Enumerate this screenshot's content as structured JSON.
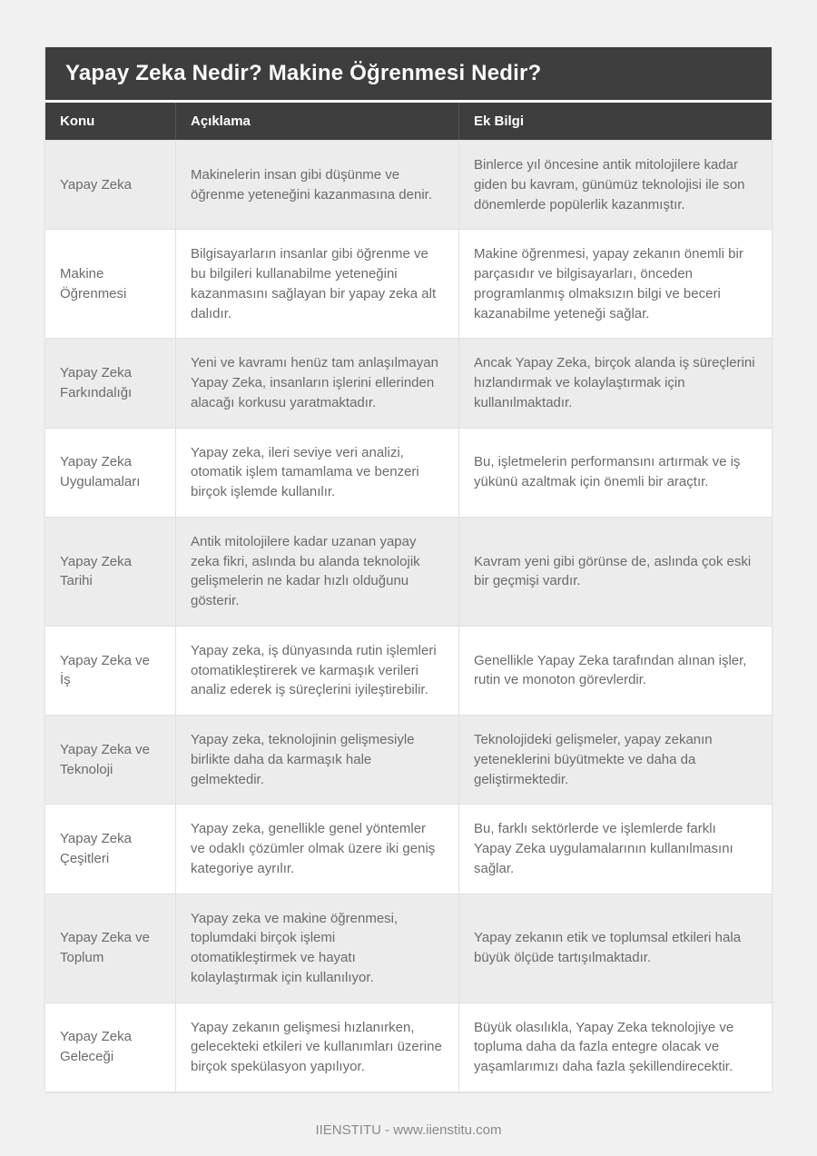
{
  "title": "Yapay Zeka Nedir? Makine Öğrenmesi Nedir?",
  "table": {
    "headers": {
      "konu": "Konu",
      "aciklama": "Açıklama",
      "ek_bilgi": "Ek Bilgi"
    },
    "rows": [
      {
        "konu": "Yapay Zeka",
        "aciklama": "Makinelerin insan gibi düşünme ve öğrenme yeteneğini kazanmasına denir.",
        "ek_bilgi": "Binlerce yıl öncesine antik mitolojilere kadar giden bu kavram, günümüz teknolojisi ile son dönemlerde popülerlik kazanmıştır."
      },
      {
        "konu": "Makine Öğrenmesi",
        "aciklama": "Bilgisayarların insanlar gibi öğrenme ve bu bilgileri kullanabilme yeteneğini kazanmasını sağlayan bir yapay zeka alt dalıdır.",
        "ek_bilgi": "Makine öğrenmesi, yapay zekanın önemli bir parçasıdır ve bilgisayarları, önceden programlanmış olmaksızın bilgi ve beceri kazanabilme yeteneği sağlar."
      },
      {
        "konu": "Yapay Zeka Farkındalığı",
        "aciklama": "Yeni ve kavramı henüz tam anlaşılmayan Yapay Zeka, insanların işlerini ellerinden alacağı korkusu yaratmaktadır.",
        "ek_bilgi": "Ancak Yapay Zeka, birçok alanda iş süreçlerini hızlandırmak ve kolaylaştırmak için kullanılmaktadır."
      },
      {
        "konu": "Yapay Zeka Uygulamaları",
        "aciklama": "Yapay zeka, ileri seviye veri analizi, otomatik işlem tamamlama ve benzeri birçok işlemde kullanılır.",
        "ek_bilgi": "Bu, işletmelerin performansını artırmak ve iş yükünü azaltmak için önemli bir araçtır."
      },
      {
        "konu": "Yapay Zeka Tarihi",
        "aciklama": "Antik mitolojilere kadar uzanan yapay zeka fikri, aslında bu alanda teknolojik gelişmelerin ne kadar hızlı olduğunu gösterir.",
        "ek_bilgi": "Kavram yeni gibi görünse de, aslında çok eski bir geçmişi vardır."
      },
      {
        "konu": "Yapay Zeka ve İş",
        "aciklama": "Yapay zeka, iş dünyasında rutin işlemleri otomatikleştirerek ve karmaşık verileri analiz ederek iş süreçlerini iyileştirebilir.",
        "ek_bilgi": "Genellikle Yapay Zeka tarafından alınan işler, rutin ve monoton görevlerdir."
      },
      {
        "konu": "Yapay Zeka ve Teknoloji",
        "aciklama": "Yapay zeka, teknolojinin gelişmesiyle birlikte daha da karmaşık hale gelmektedir.",
        "ek_bilgi": "Teknolojideki gelişmeler, yapay zekanın yeteneklerini büyütmekte ve daha da geliştirmektedir."
      },
      {
        "konu": "Yapay Zeka Çeşitleri",
        "aciklama": "Yapay zeka, genellikle genel yöntemler ve odaklı çözümler olmak üzere iki geniş kategoriye ayrılır.",
        "ek_bilgi": "Bu, farklı sektörlerde ve işlemlerde farklı Yapay Zeka uygulamalarının kullanılmasını sağlar."
      },
      {
        "konu": "Yapay Zeka ve Toplum",
        "aciklama": "Yapay zeka ve makine öğrenmesi, toplumdaki birçok işlemi otomatikleştirmek ve hayatı kolaylaştırmak için kullanılıyor.",
        "ek_bilgi": "Yapay zekanın etik ve toplumsal etkileri hala büyük ölçüde tartışılmaktadır."
      },
      {
        "konu": "Yapay Zeka Geleceği",
        "aciklama": "Yapay zekanın gelişmesi hızlanırken, gelecekteki etkileri ve kullanımları üzerine birçok spekülasyon yapılıyor.",
        "ek_bilgi": "Büyük olasılıkla, Yapay Zeka teknolojiye ve topluma daha da fazla entegre olacak ve yaşamlarımızı daha fazla şekillendirecektir."
      }
    ]
  },
  "footer": {
    "text": "IIENSTITU - www.iienstitu.com"
  }
}
